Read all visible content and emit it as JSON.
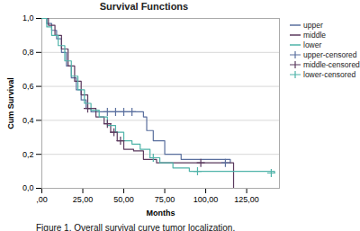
{
  "chart_data": {
    "type": "survival",
    "title": "Survival Functions",
    "caption": "Figure 1. Overall survival curve tumor localization.",
    "x_label": "Months",
    "y_label": "Cum Survival",
    "xlim": [
      0,
      145
    ],
    "ylim": [
      0,
      1
    ],
    "xticks": [
      {
        "value": 0,
        "label": ",00"
      },
      {
        "value": 25,
        "label": "25,00"
      },
      {
        "value": 50,
        "label": "50,00"
      },
      {
        "value": 75,
        "label": "75,00"
      },
      {
        "value": 100,
        "label": "100,00"
      },
      {
        "value": 125,
        "label": "125,00"
      }
    ],
    "yticks": [
      {
        "value": 0,
        "label": "0,0"
      },
      {
        "value": 0.2,
        "label": "0,2"
      },
      {
        "value": 0.4,
        "label": "0,4"
      },
      {
        "value": 0.6,
        "label": "0,6"
      },
      {
        "value": 0.8,
        "label": "0,8"
      },
      {
        "value": 1,
        "label": "1,0"
      }
    ],
    "grid": true,
    "legend": "right",
    "series": [
      {
        "name": "upper",
        "type": "step",
        "color": "#5a6f9e",
        "x": [
          0,
          3,
          6,
          9,
          12,
          15,
          18,
          21,
          24,
          27,
          30,
          62,
          64,
          68,
          75,
          85,
          115
        ],
        "values": [
          1,
          0.97,
          0.93,
          0.88,
          0.8,
          0.72,
          0.65,
          0.58,
          0.52,
          0.47,
          0.45,
          0.42,
          0.34,
          0.28,
          0.2,
          0.17,
          0.15
        ]
      },
      {
        "name": "middle",
        "type": "step",
        "color": "#5b3a5e",
        "x": [
          0,
          4,
          8,
          12,
          16,
          20,
          24,
          28,
          33,
          38,
          42,
          46,
          50,
          56,
          62,
          70,
          117
        ],
        "values": [
          1,
          0.96,
          0.9,
          0.82,
          0.72,
          0.63,
          0.55,
          0.47,
          0.42,
          0.38,
          0.33,
          0.28,
          0.23,
          0.22,
          0.17,
          0.15,
          0
        ]
      },
      {
        "name": "lower",
        "type": "step",
        "color": "#4fb3a9",
        "x": [
          0,
          3,
          6,
          10,
          14,
          18,
          22,
          26,
          30,
          35,
          40,
          45,
          50,
          55,
          60,
          66,
          72,
          80,
          90,
          142
        ],
        "values": [
          1,
          0.95,
          0.9,
          0.84,
          0.75,
          0.66,
          0.58,
          0.5,
          0.46,
          0.42,
          0.37,
          0.33,
          0.28,
          0.26,
          0.23,
          0.18,
          0.15,
          0.12,
          0.1,
          0.09
        ]
      },
      {
        "name": "upper-censored",
        "type": "scatter",
        "marker": "plus",
        "color": "#5a6f9e",
        "x": [
          40,
          45,
          50,
          55,
          112
        ],
        "values": [
          0.45,
          0.45,
          0.45,
          0.45,
          0.15
        ]
      },
      {
        "name": "middle-censored",
        "type": "scatter",
        "marker": "plus",
        "color": "#5b3a5e",
        "x": [
          28,
          40,
          44,
          48,
          97
        ],
        "values": [
          0.47,
          0.38,
          0.33,
          0.28,
          0.15
        ]
      },
      {
        "name": "lower-censored",
        "type": "scatter",
        "marker": "plus",
        "color": "#4fb3a9",
        "x": [
          68,
          95,
          140
        ],
        "values": [
          0.18,
          0.1,
          0.09
        ]
      }
    ]
  }
}
